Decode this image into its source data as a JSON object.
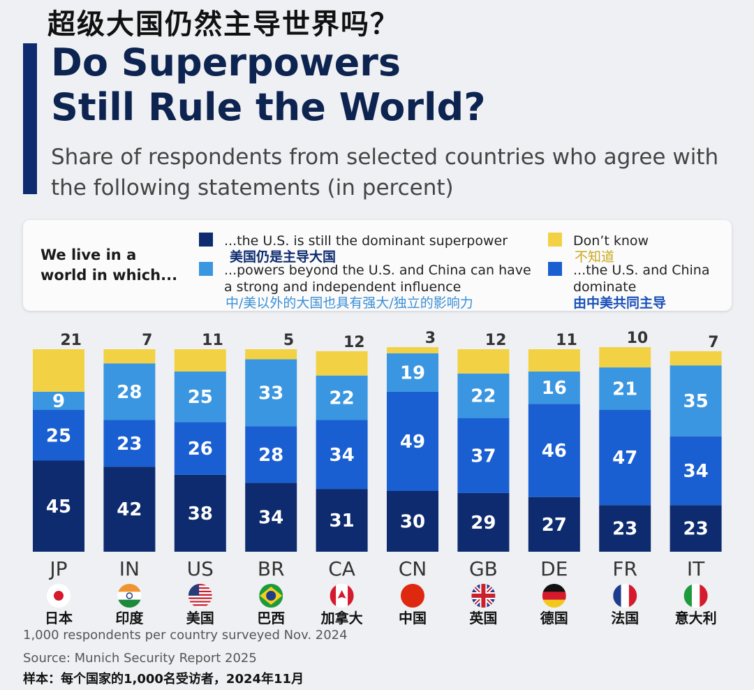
{
  "header": {
    "zh_title": "超级大国仍然主导世界吗？",
    "title_line1": "Do Superpowers",
    "title_line2": "Still Rule the World?",
    "subtitle": "Share of respondents from selected countries who agree with the following statements (in percent)"
  },
  "legend": {
    "heading_line1": "We live in a",
    "heading_line2": "world in which...",
    "items": [
      {
        "label": "...the U.S. is still the dominant superpower",
        "zh": "美国仍是主导大国",
        "color": "#0d2b6e"
      },
      {
        "label": "...powers beyond the U.S. and China can have a strong and independent influence",
        "zh": "中/美以外的大国也具有强大/独立的影响力",
        "color": "#3a96e0"
      },
      {
        "label": "Don’t know",
        "zh": "不知道",
        "color": "#f2d244"
      },
      {
        "label": "...the U.S. and China dominate",
        "zh": "由中美共同主导",
        "color": "#1a5fd1"
      }
    ]
  },
  "chart_data": {
    "type": "bar",
    "stacked": true,
    "categories": [
      "JP",
      "IN",
      "US",
      "BR",
      "CA",
      "CN",
      "GB",
      "DE",
      "FR",
      "IT"
    ],
    "categories_zh": [
      "日本",
      "印度",
      "美国",
      "巴西",
      "加拿大",
      "中国",
      "英国",
      "德国",
      "法国",
      "意大利"
    ],
    "series": [
      {
        "name": "...the U.S. is still the dominant superpower",
        "color": "#0d2b6e",
        "values": [
          45,
          42,
          38,
          34,
          31,
          30,
          29,
          27,
          23,
          23
        ]
      },
      {
        "name": "...the U.S. and China dominate",
        "color": "#1a5fd1",
        "values": [
          25,
          23,
          26,
          28,
          34,
          49,
          37,
          46,
          47,
          34
        ]
      },
      {
        "name": "...powers beyond the U.S. and China can have a strong and independent influence",
        "color": "#3a96e0",
        "values": [
          9,
          28,
          25,
          33,
          22,
          19,
          22,
          16,
          21,
          35
        ]
      },
      {
        "name": "Don’t know",
        "color": "#f2d244",
        "values": [
          21,
          7,
          11,
          5,
          12,
          3,
          12,
          11,
          10,
          7
        ]
      }
    ],
    "ylim": [
      0,
      100
    ]
  },
  "footer": {
    "note": "1,000 respondents per country surveyed Nov. 2024",
    "source": "Source: Munich Security Report 2025",
    "zh_note": "样本：每个国家的1,000名受访者，2024年11月"
  }
}
